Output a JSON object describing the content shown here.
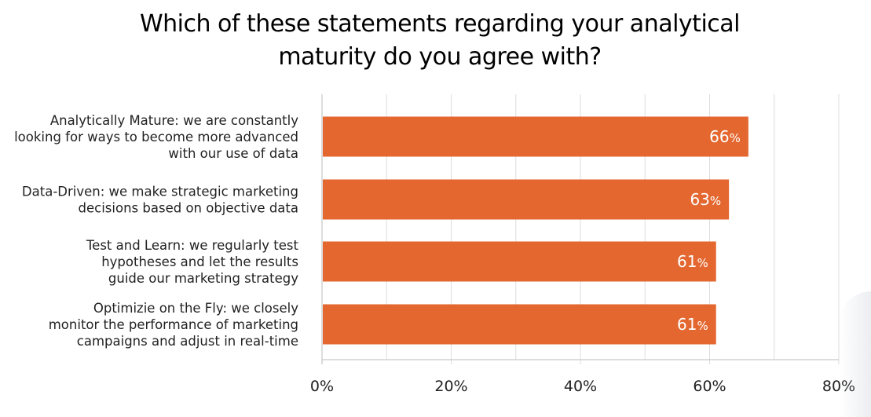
{
  "chart_data": {
    "type": "bar",
    "orientation": "horizontal",
    "title_lines": [
      "Which of these statements regarding your analytical",
      "maturity do you agree with?"
    ],
    "categories": [
      [
        "Analytically Mature: we are constantly",
        "looking for ways to become more advanced",
        "with our use of data"
      ],
      [
        "Data-Driven: we make strategic marketing",
        "decisions based on objective data"
      ],
      [
        "Test and Learn: we regularly test",
        "hypotheses and let the results",
        "guide our marketing strategy"
      ],
      [
        "Optimizie on the Fly: we closely",
        "monitor the performance of marketing",
        "campaigns and adjust in real-time"
      ]
    ],
    "values": [
      66,
      63,
      61,
      61
    ],
    "data_labels": [
      "66",
      "63",
      "61",
      "61"
    ],
    "data_label_suffix": "%",
    "xlim": [
      0,
      80
    ],
    "xticks": [
      0,
      20,
      40,
      60,
      80
    ],
    "xtick_labels": [
      "0%",
      "20%",
      "40%",
      "60%",
      "80%"
    ],
    "grid": true,
    "bar_color": "#e3672f",
    "grid_color": "#dddddd",
    "axis_color": "#bbbbbb"
  }
}
